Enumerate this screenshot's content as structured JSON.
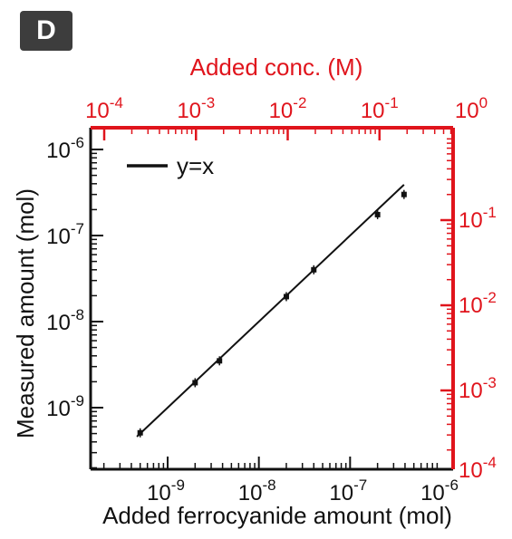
{
  "panel_label": "D",
  "colors": {
    "axis_black": "#111111",
    "axis_red": "#e0141c",
    "badge": "#3d3d3d"
  },
  "chart_data": {
    "type": "scatter",
    "xlabel": "Added ferrocyanide amount (mol)",
    "ylabel": "Measured amount (mol)",
    "x2label": "Added conc. (M)",
    "xscale": "log",
    "yscale": "log",
    "xlim": [
      1e-10,
      1e-06
    ],
    "ylim": [
      2e-10,
      1.5e-06
    ],
    "x2lim": [
      0.0001,
      1
    ],
    "y2lim": [
      0.0001,
      1
    ],
    "x_ticks": [
      {
        "base": "10",
        "exp": "-9",
        "value": 1e-09
      },
      {
        "base": "10",
        "exp": "-8",
        "value": 1e-08
      },
      {
        "base": "10",
        "exp": "-7",
        "value": 1e-07
      },
      {
        "base": "10",
        "exp": "-6",
        "value": 1e-06
      }
    ],
    "y_ticks": [
      {
        "base": "10",
        "exp": "-9",
        "value": 1e-09
      },
      {
        "base": "10",
        "exp": "-8",
        "value": 1e-08
      },
      {
        "base": "10",
        "exp": "-7",
        "value": 1e-07
      },
      {
        "base": "10",
        "exp": "-6",
        "value": 1e-06
      }
    ],
    "x2_ticks": [
      {
        "base": "10",
        "exp": "-4",
        "value": 0.0001
      },
      {
        "base": "10",
        "exp": "-3",
        "value": 0.001
      },
      {
        "base": "10",
        "exp": "-2",
        "value": 0.01
      },
      {
        "base": "10",
        "exp": "-1",
        "value": 0.1
      },
      {
        "base": "10",
        "exp": "0",
        "value": 1
      }
    ],
    "y2_ticks": [
      {
        "base": "10",
        "exp": "-4",
        "value": 0.0001
      },
      {
        "base": "10",
        "exp": "-3",
        "value": 0.001
      },
      {
        "base": "10",
        "exp": "-2",
        "value": 0.01
      },
      {
        "base": "10",
        "exp": "-1",
        "value": 0.1
      }
    ],
    "series": [
      {
        "name": "",
        "type": "scatter",
        "color": "#111111",
        "points": [
          {
            "x": 5e-10,
            "y": 5.1e-10
          },
          {
            "x": 2e-09,
            "y": 1.95e-09
          },
          {
            "x": 3.7e-09,
            "y": 3.5e-09
          },
          {
            "x": 2e-08,
            "y": 1.95e-08
          },
          {
            "x": 4e-08,
            "y": 4e-08
          },
          {
            "x": 2e-07,
            "y": 1.75e-07
          },
          {
            "x": 3.9e-07,
            "y": 3e-07
          }
        ]
      },
      {
        "name": "y=x",
        "type": "line",
        "color": "#111111",
        "points": [
          {
            "x": 4.6e-10,
            "y": 4.6e-10
          },
          {
            "x": 3.9e-07,
            "y": 3.9e-07
          }
        ]
      }
    ],
    "legend": {
      "position": "top-left",
      "label": "y=x"
    },
    "grid": false
  }
}
